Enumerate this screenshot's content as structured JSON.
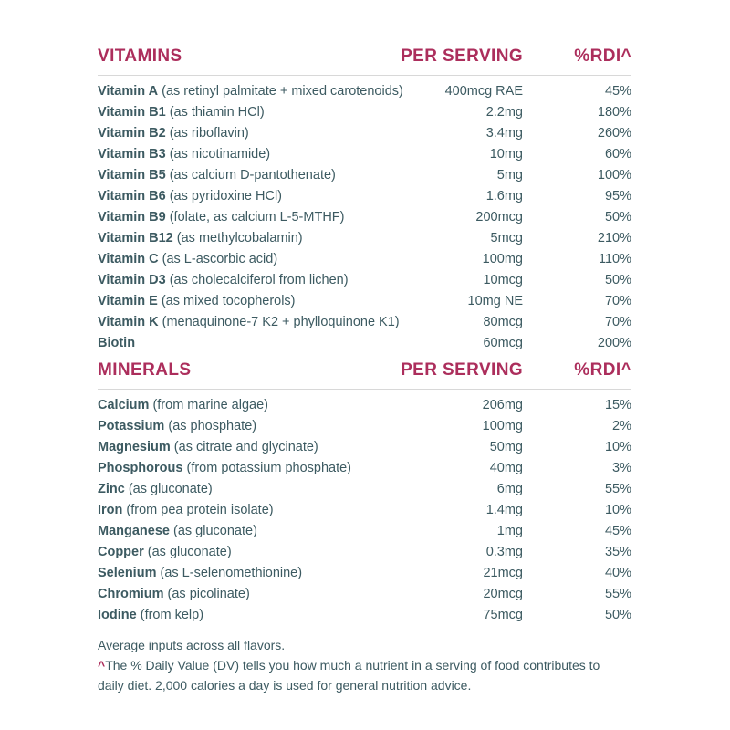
{
  "theme": {
    "accent": "#AC2E5C",
    "text_color": "#3C5A61",
    "divider_color": "#D8D8D8",
    "background": "#FFFFFF"
  },
  "sections": [
    {
      "title": "VITAMINS",
      "col2_header": "PER SERVING",
      "col3_header": "%RDI^",
      "rows": [
        {
          "name": "Vitamin A",
          "desc": "(as retinyl palmitate + mixed carotenoids)",
          "amount": "400mcg RAE",
          "rdi": "45%"
        },
        {
          "name": "Vitamin B1",
          "desc": "(as thiamin HCl)",
          "amount": "2.2mg",
          "rdi": "180%"
        },
        {
          "name": "Vitamin B2",
          "desc": "(as riboflavin)",
          "amount": "3.4mg",
          "rdi": "260%"
        },
        {
          "name": "Vitamin B3",
          "desc": "(as nicotinamide)",
          "amount": "10mg",
          "rdi": "60%"
        },
        {
          "name": "Vitamin B5",
          "desc": "(as calcium D-pantothenate)",
          "amount": "5mg",
          "rdi": "100%"
        },
        {
          "name": "Vitamin B6",
          "desc": "(as pyridoxine HCl)",
          "amount": "1.6mg",
          "rdi": "95%"
        },
        {
          "name": "Vitamin B9",
          "desc": "(folate, as calcium L-5-MTHF)",
          "amount": "200mcg",
          "rdi": "50%"
        },
        {
          "name": "Vitamin B12",
          "desc": "(as methylcobalamin)",
          "amount": "5mcg",
          "rdi": "210%"
        },
        {
          "name": "Vitamin C",
          "desc": "(as L-ascorbic acid)",
          "amount": "100mg",
          "rdi": "110%"
        },
        {
          "name": "Vitamin D3",
          "desc": "(as cholecalciferol from lichen)",
          "amount": "10mcg",
          "rdi": "50%"
        },
        {
          "name": "Vitamin E",
          "desc": "(as mixed tocopherols)",
          "amount": "10mg NE",
          "rdi": "70%"
        },
        {
          "name": "Vitamin K",
          "desc": "(menaquinone-7 K2 + phylloquinone K1)",
          "amount": "80mcg",
          "rdi": "70%"
        },
        {
          "name": "Biotin",
          "desc": "",
          "amount": "60mcg",
          "rdi": "200%"
        }
      ]
    },
    {
      "title": "MINERALS",
      "col2_header": "PER SERVING",
      "col3_header": "%RDI^",
      "rows": [
        {
          "name": "Calcium",
          "desc": "(from marine algae)",
          "amount": "206mg",
          "rdi": "15%"
        },
        {
          "name": "Potassium",
          "desc": "(as phosphate)",
          "amount": "100mg",
          "rdi": "2%"
        },
        {
          "name": "Magnesium",
          "desc": "(as citrate and glycinate)",
          "amount": "50mg",
          "rdi": "10%"
        },
        {
          "name": "Phosphorous",
          "desc": "(from potassium phosphate)",
          "amount": "40mg",
          "rdi": "3%"
        },
        {
          "name": "Zinc",
          "desc": "(as gluconate)",
          "amount": "6mg",
          "rdi": "55%"
        },
        {
          "name": "Iron",
          "desc": "(from pea protein isolate)",
          "amount": "1.4mg",
          "rdi": "10%"
        },
        {
          "name": "Manganese",
          "desc": "(as gluconate)",
          "amount": "1mg",
          "rdi": "45%"
        },
        {
          "name": "Copper",
          "desc": "(as gluconate)",
          "amount": "0.3mg",
          "rdi": "35%"
        },
        {
          "name": "Selenium",
          "desc": "(as L-selenomethionine)",
          "amount": "21mcg",
          "rdi": "40%"
        },
        {
          "name": "Chromium",
          "desc": "(as picolinate)",
          "amount": "20mcg",
          "rdi": "55%"
        },
        {
          "name": "Iodine",
          "desc": "(from kelp)",
          "amount": "75mcg",
          "rdi": "50%"
        }
      ]
    }
  ],
  "footnotes": {
    "line1": "Average inputs across all flavors.",
    "caret": "^",
    "line2": "The % Daily Value (DV) tells you how much a nutrient in a serving of food contributes to",
    "line3": "daily diet. 2,000 calories a day is used for general nutrition advice."
  }
}
